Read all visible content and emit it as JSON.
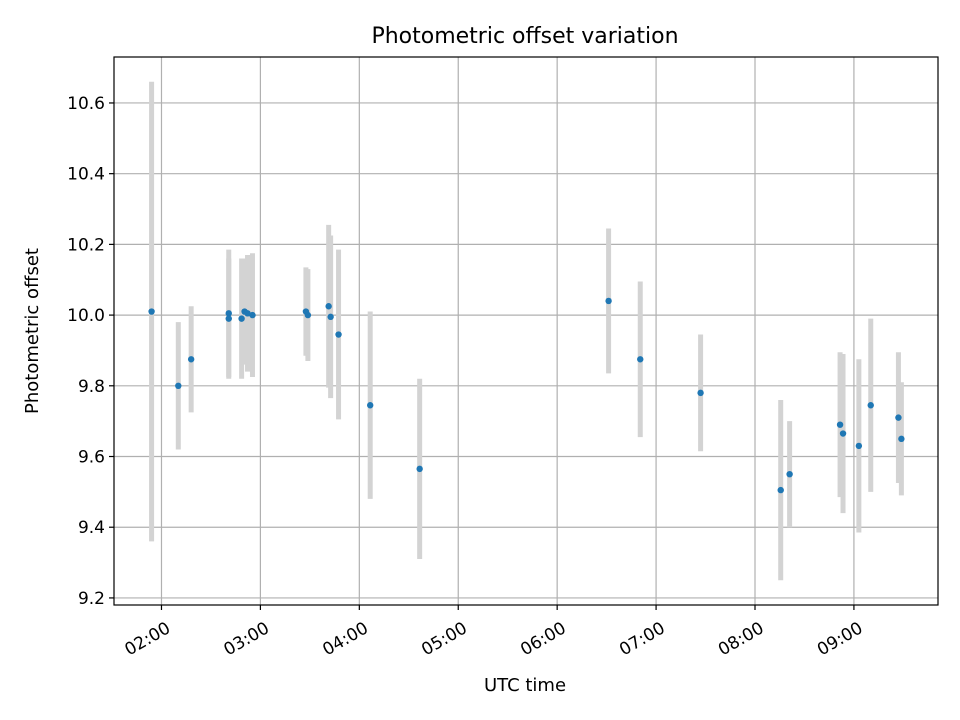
{
  "chart_data": {
    "type": "scatter",
    "title": "Photometric offset variation",
    "xlabel": "UTC time",
    "ylabel": "Photometric offset",
    "grid": true,
    "legend": "none",
    "point_color": "#1f77b4",
    "errorbar_color": "#d3d3d3",
    "x_unit": "hours UTC",
    "xlim": [
      1.52,
      9.85
    ],
    "ylim": [
      9.18,
      10.73
    ],
    "x_ticks": [
      {
        "value": 2,
        "label": "02:00"
      },
      {
        "value": 3,
        "label": "03:00"
      },
      {
        "value": 4,
        "label": "04:00"
      },
      {
        "value": 5,
        "label": "05:00"
      },
      {
        "value": 6,
        "label": "06:00"
      },
      {
        "value": 7,
        "label": "07:00"
      },
      {
        "value": 8,
        "label": "08:00"
      },
      {
        "value": 9,
        "label": "09:00"
      }
    ],
    "y_ticks": [
      {
        "value": 9.2,
        "label": "9.2"
      },
      {
        "value": 9.4,
        "label": "9.4"
      },
      {
        "value": 9.6,
        "label": "9.6"
      },
      {
        "value": 9.8,
        "label": "9.8"
      },
      {
        "value": 10.0,
        "label": "10.0"
      },
      {
        "value": 10.2,
        "label": "10.2"
      },
      {
        "value": 10.4,
        "label": "10.4"
      },
      {
        "value": 10.6,
        "label": "10.6"
      }
    ],
    "points": [
      {
        "x": 1.9,
        "y": 10.01,
        "err": 0.65
      },
      {
        "x": 2.17,
        "y": 9.8,
        "err": 0.18
      },
      {
        "x": 2.3,
        "y": 9.875,
        "err": 0.15
      },
      {
        "x": 2.68,
        "y": 10.005,
        "err": 0.18
      },
      {
        "x": 2.68,
        "y": 9.99,
        "err": 0.17
      },
      {
        "x": 2.81,
        "y": 9.99,
        "err": 0.17
      },
      {
        "x": 2.84,
        "y": 10.01,
        "err": 0.15
      },
      {
        "x": 2.87,
        "y": 10.005,
        "err": 0.165
      },
      {
        "x": 2.92,
        "y": 10.0,
        "err": 0.175
      },
      {
        "x": 3.46,
        "y": 10.01,
        "err": 0.125
      },
      {
        "x": 3.48,
        "y": 10.0,
        "err": 0.13
      },
      {
        "x": 3.69,
        "y": 10.025,
        "err": 0.23
      },
      {
        "x": 3.71,
        "y": 9.995,
        "err": 0.23
      },
      {
        "x": 3.79,
        "y": 9.945,
        "err": 0.24
      },
      {
        "x": 4.11,
        "y": 9.745,
        "err": 0.265
      },
      {
        "x": 4.61,
        "y": 9.565,
        "err": 0.255
      },
      {
        "x": 6.52,
        "y": 10.04,
        "err": 0.205
      },
      {
        "x": 6.84,
        "y": 9.875,
        "err": 0.22
      },
      {
        "x": 7.45,
        "y": 9.78,
        "err": 0.165
      },
      {
        "x": 8.26,
        "y": 9.505,
        "err": 0.255
      },
      {
        "x": 8.35,
        "y": 9.55,
        "err": 0.15
      },
      {
        "x": 8.86,
        "y": 9.69,
        "err": 0.205
      },
      {
        "x": 8.89,
        "y": 9.665,
        "err": 0.225
      },
      {
        "x": 9.05,
        "y": 9.63,
        "err": 0.245
      },
      {
        "x": 9.17,
        "y": 9.745,
        "err": 0.245
      },
      {
        "x": 9.45,
        "y": 9.71,
        "err": 0.185
      },
      {
        "x": 9.48,
        "y": 9.65,
        "err": 0.16
      }
    ]
  }
}
